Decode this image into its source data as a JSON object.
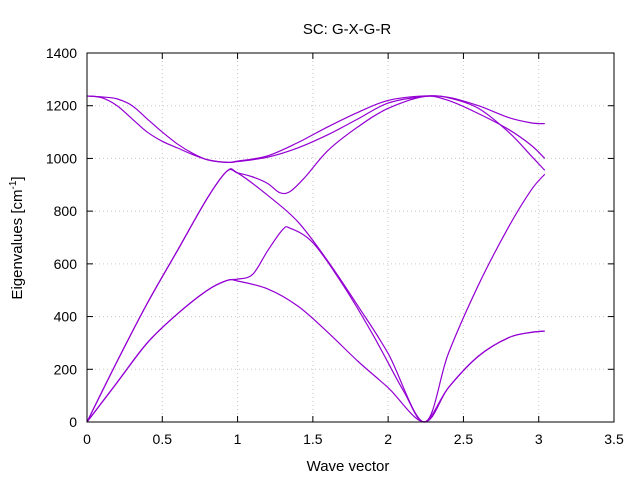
{
  "chart_data": {
    "type": "line",
    "title": "SC: G-X-G-R",
    "xlabel": "Wave vector",
    "ylabel_main": "Eigenvalues [cm",
    "ylabel_sup": "-1",
    "ylabel_end": "]",
    "xlim": [
      0,
      3.5
    ],
    "ylim": [
      0,
      1400
    ],
    "xticks": [
      "0",
      "0.5",
      "1",
      "1.5",
      "2",
      "2.5",
      "3",
      "3.5"
    ],
    "yticks": [
      "0",
      "200",
      "400",
      "600",
      "800",
      "1000",
      "1200",
      "1400"
    ],
    "grid": true,
    "line_color": "#9400d3",
    "series": [
      {
        "values": [
          [
            0,
            0
          ],
          [
            0.2,
            150
          ],
          [
            0.4,
            300
          ],
          [
            0.6,
            410
          ],
          [
            0.8,
            500
          ],
          [
            0.93,
            537
          ],
          [
            1.0,
            542
          ],
          [
            1.1,
            560
          ],
          [
            1.2,
            650
          ],
          [
            1.3,
            730
          ],
          [
            1.35,
            735
          ],
          [
            1.5,
            680
          ],
          [
            1.7,
            520
          ],
          [
            1.9,
            330
          ],
          [
            2.1,
            120
          ],
          [
            2.24,
            0
          ],
          [
            2.4,
            130
          ],
          [
            2.6,
            250
          ],
          [
            2.8,
            320
          ],
          [
            2.95,
            340
          ],
          [
            3.04,
            345
          ]
        ]
      },
      {
        "values": [
          [
            0,
            0
          ],
          [
            0.2,
            150
          ],
          [
            0.4,
            300
          ],
          [
            0.6,
            410
          ],
          [
            0.8,
            500
          ],
          [
            0.93,
            537
          ],
          [
            1.0,
            535
          ],
          [
            1.2,
            505
          ],
          [
            1.4,
            440
          ],
          [
            1.6,
            340
          ],
          [
            1.8,
            230
          ],
          [
            2.0,
            130
          ],
          [
            2.24,
            0
          ],
          [
            2.4,
            130
          ],
          [
            2.6,
            250
          ],
          [
            2.8,
            320
          ],
          [
            2.95,
            340
          ],
          [
            3.04,
            345
          ]
        ]
      },
      {
        "values": [
          [
            0,
            0
          ],
          [
            0.2,
            230
          ],
          [
            0.4,
            450
          ],
          [
            0.6,
            650
          ],
          [
            0.8,
            850
          ],
          [
            0.93,
            952
          ],
          [
            1.0,
            945
          ],
          [
            1.1,
            930
          ],
          [
            1.2,
            905
          ],
          [
            1.28,
            870
          ],
          [
            1.35,
            875
          ],
          [
            1.45,
            930
          ],
          [
            1.6,
            1030
          ],
          [
            1.8,
            1120
          ],
          [
            2.0,
            1190
          ],
          [
            2.24,
            1235
          ],
          [
            2.4,
            1220
          ],
          [
            2.6,
            1170
          ],
          [
            2.8,
            1110
          ],
          [
            2.95,
            1050
          ],
          [
            3.04,
            1000
          ]
        ]
      },
      {
        "values": [
          [
            0,
            0
          ],
          [
            0.2,
            230
          ],
          [
            0.4,
            450
          ],
          [
            0.6,
            650
          ],
          [
            0.8,
            850
          ],
          [
            0.93,
            952
          ],
          [
            1.0,
            945
          ],
          [
            1.2,
            860
          ],
          [
            1.4,
            760
          ],
          [
            1.6,
            610
          ],
          [
            1.8,
            440
          ],
          [
            2.0,
            260
          ],
          [
            2.24,
            0
          ],
          [
            2.4,
            260
          ],
          [
            2.6,
            520
          ],
          [
            2.8,
            740
          ],
          [
            2.95,
            880
          ],
          [
            3.04,
            940
          ]
        ]
      },
      {
        "values": [
          [
            0,
            1237
          ],
          [
            0.1,
            1230
          ],
          [
            0.2,
            1200
          ],
          [
            0.3,
            1150
          ],
          [
            0.4,
            1100
          ],
          [
            0.5,
            1065
          ],
          [
            0.6,
            1040
          ],
          [
            0.7,
            1015
          ],
          [
            0.8,
            995
          ],
          [
            0.93,
            985
          ],
          [
            1.0,
            988
          ],
          [
            1.2,
            1005
          ],
          [
            1.4,
            1040
          ],
          [
            1.6,
            1090
          ],
          [
            1.8,
            1150
          ],
          [
            2.0,
            1210
          ],
          [
            2.24,
            1235
          ],
          [
            2.4,
            1232
          ],
          [
            2.6,
            1200
          ],
          [
            2.8,
            1155
          ],
          [
            2.95,
            1135
          ],
          [
            3.04,
            1132
          ]
        ]
      },
      {
        "values": [
          [
            0,
            1237
          ],
          [
            0.1,
            1233
          ],
          [
            0.2,
            1226
          ],
          [
            0.3,
            1200
          ],
          [
            0.4,
            1150
          ],
          [
            0.5,
            1100
          ],
          [
            0.6,
            1055
          ],
          [
            0.7,
            1020
          ],
          [
            0.8,
            995
          ],
          [
            0.93,
            985
          ],
          [
            1.0,
            990
          ],
          [
            1.2,
            1010
          ],
          [
            1.4,
            1060
          ],
          [
            1.6,
            1120
          ],
          [
            1.8,
            1175
          ],
          [
            2.0,
            1220
          ],
          [
            2.24,
            1237
          ],
          [
            2.4,
            1230
          ],
          [
            2.6,
            1190
          ],
          [
            2.8,
            1100
          ],
          [
            2.95,
            1010
          ],
          [
            3.04,
            955
          ]
        ]
      }
    ]
  }
}
